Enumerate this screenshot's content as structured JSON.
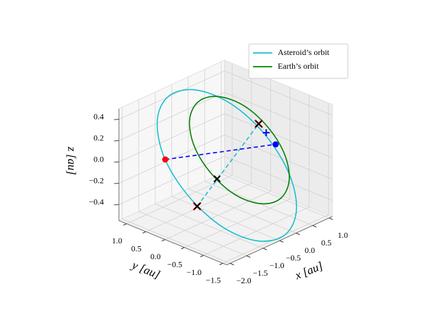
{
  "chart_data": {
    "type": "line3d",
    "xlabel": "x [au]",
    "ylabel": "y [au]",
    "zlabel": "z [au]",
    "xlim": [
      -2.1,
      1.1
    ],
    "ylim": [
      -1.6,
      1.2
    ],
    "zlim": [
      -0.55,
      0.5
    ],
    "xticks": [
      {
        "value": -2.0,
        "label": "−2.0"
      },
      {
        "value": -1.5,
        "label": "−1.5"
      },
      {
        "value": -1.0,
        "label": "−1.0"
      },
      {
        "value": -0.5,
        "label": "−0.5"
      },
      {
        "value": 0.0,
        "label": "0.0"
      },
      0.5,
      {
        "value": 1.0,
        "label": "1.0"
      }
    ],
    "yticks": [
      {
        "value": -1.5,
        "label": "−1.5"
      },
      {
        "value": -1.0,
        "label": "−1.0"
      },
      {
        "value": -0.5,
        "label": "−0.5"
      },
      {
        "value": 0.0,
        "label": "0.0"
      },
      0.5,
      {
        "value": 1.0,
        "label": "1.0"
      }
    ],
    "zticks": [
      {
        "value": -0.4,
        "label": "−0.4"
      },
      {
        "value": -0.2,
        "label": "−0.2"
      },
      {
        "value": 0.0,
        "label": "0.0"
      },
      0.2,
      0.4
    ],
    "grid": true,
    "legend": "upper right",
    "series": [
      {
        "name": "Asteroid’s orbit",
        "color": "#17becf",
        "x": [
          -0.5,
          -1.0,
          -1.29,
          -1.3,
          -1.02,
          -0.53,
          0.04,
          0.54,
          0.83,
          0.84,
          0.56,
          0.07
        ],
        "y": [
          -1.75,
          -1.48,
          -0.81,
          0.07,
          0.94,
          1.55,
          1.75,
          1.48,
          0.81,
          -0.07,
          -0.94,
          -1.55
        ],
        "z": [
          -0.47,
          -0.5,
          -0.43,
          -0.27,
          -0.08,
          0.11,
          0.23,
          0.26,
          0.19,
          0.03,
          -0.17,
          -0.35
        ]
      },
      {
        "name": "Earth’s orbit",
        "color": "#008000",
        "x": [
          0.18,
          -0.25,
          -0.58,
          -0.71,
          -0.61,
          -0.31,
          0.12,
          0.55,
          0.88,
          1.01,
          0.91,
          0.61
        ],
        "y": [
          -1.05,
          -0.92,
          -0.54,
          -0.02,
          0.51,
          0.9,
          1.05,
          0.92,
          0.54,
          0.02,
          -0.51,
          -0.9
        ],
        "z": [
          -0.33,
          -0.34,
          -0.27,
          -0.13,
          0.03,
          0.18,
          0.27,
          0.28,
          0.21,
          0.07,
          -0.09,
          -0.24
        ]
      }
    ],
    "lines": [
      {
        "color": "#17becf",
        "style": "dashed",
        "x": [
          -1.41,
          0.49
        ],
        "y": [
          -0.24,
          -0.21
        ],
        "z": [
          -0.3,
          0.2
        ]
      },
      {
        "color": "#0000ff",
        "style": "dashed",
        "x": [
          -1.35,
          0.76
        ],
        "y": [
          0.64,
          -0.42
        ],
        "z": [
          0.0,
          0.0
        ]
      }
    ],
    "markers": [
      {
        "marker": "o",
        "color": "#ff0000",
        "x": -1.35,
        "y": 0.64,
        "z": 0.0
      },
      {
        "marker": "o",
        "color": "#0000ff",
        "x": 0.76,
        "y": -0.42,
        "z": 0.0
      },
      {
        "marker": "+",
        "color": "#0000ff",
        "x": 0.66,
        "y": -0.26,
        "z": 0.1
      },
      {
        "marker": "x",
        "color": "#ff0000",
        "x": -1.41,
        "y": -0.24,
        "z": -0.3
      },
      {
        "marker": "x",
        "color": "#000000",
        "x": -1.41,
        "y": -0.24,
        "z": -0.3
      },
      {
        "marker": "x",
        "color": "#ff0000",
        "x": 0.49,
        "y": -0.21,
        "z": 0.2
      },
      {
        "marker": "x",
        "color": "#000000",
        "x": 0.49,
        "y": -0.21,
        "z": 0.2
      },
      {
        "marker": "x",
        "color": "#000000",
        "x": -0.91,
        "y": -0.33,
        "z": -0.1
      }
    ]
  }
}
